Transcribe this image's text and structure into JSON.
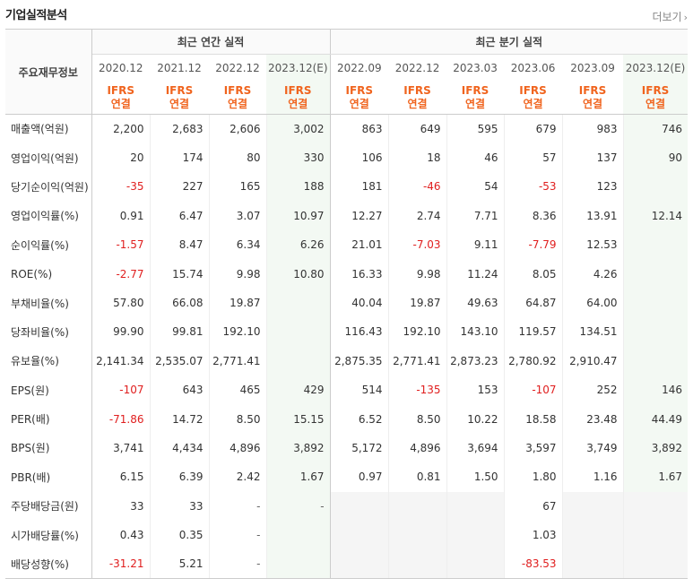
{
  "title": "기업실적분석",
  "more_label": "더보기",
  "header": {
    "row_label": "주요재무정보",
    "annual_title": "최근 연간 실적",
    "quarter_title": "최근 분기 실적",
    "periods": [
      "2020.12",
      "2021.12",
      "2022.12",
      "2023.12(E)",
      "2022.09",
      "2022.12",
      "2023.03",
      "2023.06",
      "2023.09",
      "2023.12(E)"
    ],
    "ifrs_line1": "IFRS",
    "ifrs_line2": "연결"
  },
  "rows": [
    {
      "label": "매출액(억원)",
      "values": [
        "2,200",
        "2,683",
        "2,606",
        "3,002",
        "863",
        "649",
        "595",
        "679",
        "983",
        "746"
      ]
    },
    {
      "label": "영업이익(억원)",
      "values": [
        "20",
        "174",
        "80",
        "330",
        "106",
        "18",
        "46",
        "57",
        "137",
        "90"
      ]
    },
    {
      "label": "당기순이익(억원)",
      "values": [
        "-35",
        "227",
        "165",
        "188",
        "181",
        "-46",
        "54",
        "-53",
        "123",
        ""
      ]
    },
    {
      "label": "영업이익률(%)",
      "values": [
        "0.91",
        "6.47",
        "3.07",
        "10.97",
        "12.27",
        "2.74",
        "7.71",
        "8.36",
        "13.91",
        "12.14"
      ]
    },
    {
      "label": "순이익률(%)",
      "values": [
        "-1.57",
        "8.47",
        "6.34",
        "6.26",
        "21.01",
        "-7.03",
        "9.11",
        "-7.79",
        "12.53",
        ""
      ]
    },
    {
      "label": "ROE(%)",
      "values": [
        "-2.77",
        "15.74",
        "9.98",
        "10.80",
        "16.33",
        "9.98",
        "11.24",
        "8.05",
        "4.26",
        ""
      ]
    },
    {
      "label": "부채비율(%)",
      "values": [
        "57.80",
        "66.08",
        "19.87",
        "",
        "40.04",
        "19.87",
        "49.63",
        "64.87",
        "64.00",
        ""
      ]
    },
    {
      "label": "당좌비율(%)",
      "values": [
        "99.90",
        "99.81",
        "192.10",
        "",
        "116.43",
        "192.10",
        "143.10",
        "119.57",
        "134.51",
        ""
      ]
    },
    {
      "label": "유보율(%)",
      "values": [
        "2,141.34",
        "2,535.07",
        "2,771.41",
        "",
        "2,875.35",
        "2,771.41",
        "2,873.23",
        "2,780.92",
        "2,910.47",
        ""
      ]
    },
    {
      "label": "EPS(원)",
      "values": [
        "-107",
        "643",
        "465",
        "429",
        "514",
        "-135",
        "153",
        "-107",
        "252",
        "146"
      ]
    },
    {
      "label": "PER(배)",
      "values": [
        "-71.86",
        "14.72",
        "8.50",
        "15.15",
        "6.52",
        "8.50",
        "10.22",
        "18.58",
        "23.48",
        "44.49"
      ]
    },
    {
      "label": "BPS(원)",
      "values": [
        "3,741",
        "4,434",
        "4,896",
        "3,892",
        "5,172",
        "4,896",
        "3,694",
        "3,597",
        "3,749",
        "3,892"
      ]
    },
    {
      "label": "PBR(배)",
      "values": [
        "6.15",
        "6.39",
        "2.42",
        "1.67",
        "0.97",
        "0.81",
        "1.50",
        "1.80",
        "1.16",
        "1.67"
      ]
    },
    {
      "label": "주당배당금(원)",
      "values": [
        "33",
        "33",
        "-",
        "-",
        "",
        "",
        "",
        "67",
        "",
        ""
      ]
    },
    {
      "label": "시가배당률(%)",
      "values": [
        "0.43",
        "0.35",
        "-",
        "",
        "",
        "",
        "",
        "1.03",
        "",
        ""
      ]
    },
    {
      "label": "배당성향(%)",
      "values": [
        "-31.21",
        "5.21",
        "-",
        "",
        "",
        "",
        "",
        "-83.53",
        "",
        ""
      ]
    }
  ]
}
